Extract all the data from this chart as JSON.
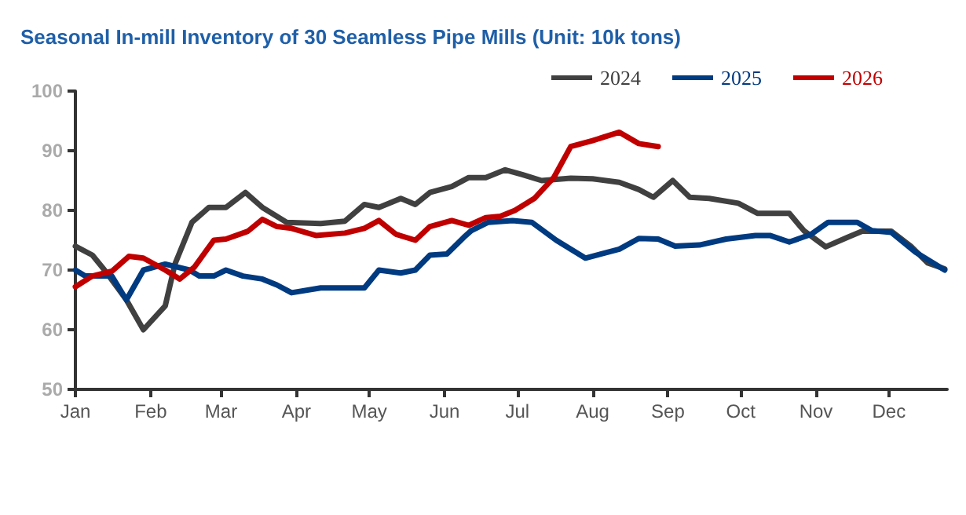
{
  "chart_data": {
    "type": "line",
    "title": "Seasonal In-mill Inventory of 30 Seamless Pipe Mills (Unit: 10k tons)",
    "xlim": [
      "--01-01",
      "--12-25"
    ],
    "xticks": [
      {
        "value": "--01-01",
        "label": "Jan"
      },
      {
        "value": "--02-01",
        "label": "Feb"
      },
      {
        "value": "--03-01",
        "label": "Mar"
      },
      {
        "value": "--04-01",
        "label": "Apr"
      },
      {
        "value": "--05-01",
        "label": "May"
      },
      {
        "value": "--06-01",
        "label": "Jun"
      },
      {
        "value": "--07-01",
        "label": "Jul"
      },
      {
        "value": "--08-01",
        "label": "Aug"
      },
      {
        "value": "--09-01",
        "label": "Sep"
      },
      {
        "value": "--10-01",
        "label": "Oct"
      },
      {
        "value": "--11-01",
        "label": "Nov"
      },
      {
        "value": "--12-01",
        "label": "Dec"
      }
    ],
    "ylim": [
      50,
      100
    ],
    "yticks": [
      50,
      60,
      70,
      80,
      90,
      100
    ],
    "grid": false,
    "legend": "top right",
    "marker": "none",
    "line_style": "solid",
    "series": [
      {
        "name": "2024",
        "color": "#404040",
        "x": [
          "--01-01",
          "--01-08",
          "--01-13",
          "--01-22",
          "--01-29",
          "--02-07",
          "--02-11",
          "--02-18",
          "--02-25",
          "--03-03",
          "--03-11",
          "--03-18",
          "--03-28",
          "--04-11",
          "--04-21",
          "--04-29",
          "--05-05",
          "--05-14",
          "--05-20",
          "--05-26",
          "--06-04",
          "--06-11",
          "--06-18",
          "--06-26",
          "--07-03",
          "--07-11",
          "--07-23",
          "--08-01",
          "--08-12",
          "--08-20",
          "--08-26",
          "--09-03",
          "--09-10",
          "--09-18",
          "--09-30",
          "--10-08",
          "--10-21",
          "--10-27",
          "--11-05",
          "--11-14",
          "--11-20",
          "--12-02",
          "--12-10",
          "--12-17",
          "--12-24"
        ],
        "values": [
          74,
          72.5,
          70,
          65,
          60,
          64,
          71,
          78,
          80.5,
          80.5,
          83,
          80.5,
          78,
          77.8,
          78.2,
          81,
          80.5,
          82,
          81,
          83,
          84,
          85.5,
          85.5,
          86.8,
          86,
          85,
          85.4,
          85.3,
          84.7,
          83.5,
          82.2,
          85,
          82.2,
          82,
          81.2,
          79.5,
          79.5,
          76.6,
          73.9,
          75.5,
          76.5,
          76.5,
          74,
          71.2,
          70.2
        ]
      },
      {
        "name": "2025",
        "color": "#003a80",
        "x": [
          "--01-01",
          "--01-05",
          "--01-16",
          "--01-22",
          "--01-29",
          "--02-07",
          "--02-17",
          "--02-21",
          "--02-27",
          "--03-03",
          "--03-10",
          "--03-18",
          "--03-24",
          "--03-30",
          "--04-11",
          "--04-29",
          "--05-05",
          "--05-14",
          "--05-20",
          "--05-26",
          "--06-02",
          "--06-09",
          "--06-12",
          "--06-19",
          "--06-29",
          "--07-07",
          "--07-17",
          "--07-29",
          "--08-12",
          "--08-20",
          "--08-28",
          "--09-04",
          "--09-14",
          "--09-25",
          "--10-07",
          "--10-13",
          "--10-21",
          "--10-30",
          "--11-06",
          "--11-18",
          "--11-24",
          "--12-02",
          "--12-12",
          "--12-24"
        ],
        "values": [
          70,
          69,
          69,
          65,
          70,
          71,
          70,
          69,
          69,
          70,
          69,
          68.5,
          67.5,
          66.2,
          67,
          67,
          70,
          69.5,
          70,
          72.5,
          72.7,
          75.5,
          76.6,
          78,
          78.3,
          78,
          75,
          72,
          73.5,
          75.3,
          75.2,
          74,
          74.2,
          75.2,
          75.8,
          75.8,
          74.7,
          76,
          78,
          78,
          76.6,
          76.3,
          73,
          70
        ]
      },
      {
        "name": "2026",
        "color": "#c00000",
        "x": [
          "--01-01",
          "--01-08",
          "--01-16",
          "--01-23",
          "--01-29",
          "--02-07",
          "--02-13",
          "--02-19",
          "--02-27",
          "--03-03",
          "--03-12",
          "--03-18",
          "--03-24",
          "--03-30",
          "--04-09",
          "--04-21",
          "--04-29",
          "--05-05",
          "--05-12",
          "--05-20",
          "--05-26",
          "--06-04",
          "--06-11",
          "--06-18",
          "--06-24",
          "--06-30",
          "--07-08",
          "--07-16",
          "--07-23",
          "--08-01",
          "--08-12",
          "--08-20",
          "--08-28"
        ],
        "values": [
          67.2,
          69,
          69.8,
          72.3,
          72,
          70,
          68.5,
          70.5,
          75,
          75.2,
          76.5,
          78.5,
          77.3,
          77,
          75.8,
          76.2,
          77,
          78.3,
          76,
          75,
          77.3,
          78.3,
          77.5,
          78.8,
          79,
          80,
          82,
          85.5,
          90.7,
          91.7,
          93.1,
          91.2,
          90.7
        ]
      }
    ]
  }
}
